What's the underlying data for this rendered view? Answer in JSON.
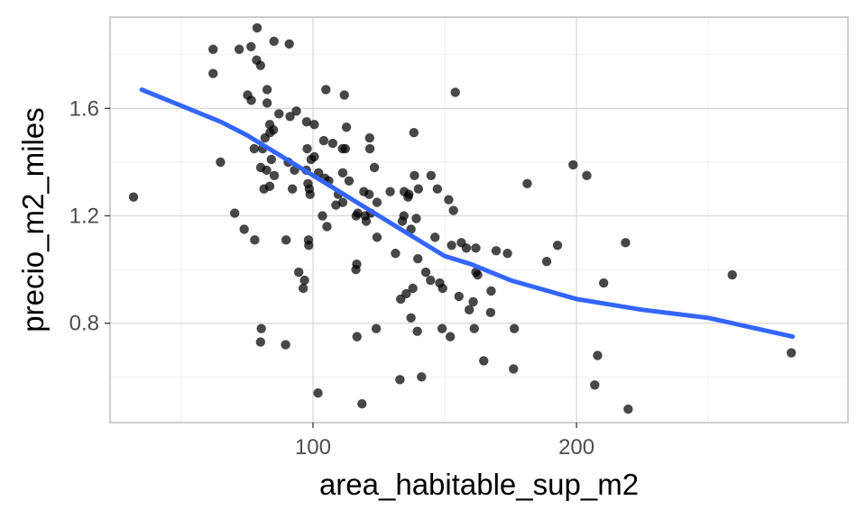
{
  "chart_data": {
    "type": "scatter",
    "title": "",
    "xlabel": "area_habitable_sup_m2",
    "ylabel": "precio_m2_miles",
    "xlim": [
      23,
      303
    ],
    "ylim": [
      0.43,
      1.94
    ],
    "x_ticks": [
      100,
      200
    ],
    "x_tick_labels": [
      "100",
      "200"
    ],
    "x_minor_ticks": [
      50,
      150,
      250
    ],
    "y_ticks": [
      0.8,
      1.2,
      1.6
    ],
    "y_tick_labels": [
      "0.8",
      "1.2",
      "1.6"
    ],
    "y_minor_ticks": [
      0.6,
      1.0,
      1.4,
      1.8
    ],
    "grid": true,
    "legend": "none",
    "colors": {
      "points": "#000000",
      "smooth": "#3366ff"
    },
    "points": [
      [
        78.8,
        1.9
      ],
      [
        85.2,
        1.85
      ],
      [
        91.0,
        1.84
      ],
      [
        62.1,
        1.82
      ],
      [
        72.0,
        1.82
      ],
      [
        76.5,
        1.83
      ],
      [
        78.6,
        1.78
      ],
      [
        80.1,
        1.76
      ],
      [
        62.1,
        1.73
      ],
      [
        75.2,
        1.65
      ],
      [
        76.6,
        1.63
      ],
      [
        82.6,
        1.67
      ],
      [
        104.9,
        1.67
      ],
      [
        111.9,
        1.65
      ],
      [
        154.0,
        1.66
      ],
      [
        82.6,
        1.62
      ],
      [
        87.1,
        1.58
      ],
      [
        91.3,
        1.57
      ],
      [
        93.7,
        1.59
      ],
      [
        83.6,
        1.54
      ],
      [
        97.6,
        1.55
      ],
      [
        100.5,
        1.54
      ],
      [
        83.7,
        1.51
      ],
      [
        85.0,
        1.52
      ],
      [
        112.7,
        1.53
      ],
      [
        138.3,
        1.51
      ],
      [
        81.8,
        1.49
      ],
      [
        104.1,
        1.48
      ],
      [
        107.5,
        1.47
      ],
      [
        111.2,
        1.45
      ],
      [
        112.3,
        1.45
      ],
      [
        121.5,
        1.49
      ],
      [
        121.6,
        1.45
      ],
      [
        77.7,
        1.45
      ],
      [
        80.9,
        1.45
      ],
      [
        97.8,
        1.45
      ],
      [
        99.3,
        1.41
      ],
      [
        100.5,
        1.42
      ],
      [
        84.2,
        1.41
      ],
      [
        90.6,
        1.4
      ],
      [
        64.9,
        1.4
      ],
      [
        198.7,
        1.39
      ],
      [
        203.9,
        1.35
      ],
      [
        80.2,
        1.38
      ],
      [
        82.4,
        1.37
      ],
      [
        85.3,
        1.35
      ],
      [
        93.0,
        1.37
      ],
      [
        97.5,
        1.37
      ],
      [
        102.1,
        1.36
      ],
      [
        104.5,
        1.34
      ],
      [
        106.0,
        1.33
      ],
      [
        111.3,
        1.36
      ],
      [
        113.7,
        1.33
      ],
      [
        123.3,
        1.38
      ],
      [
        138.5,
        1.35
      ],
      [
        144.8,
        1.35
      ],
      [
        181.3,
        1.32
      ],
      [
        81.4,
        1.3
      ],
      [
        83.6,
        1.31
      ],
      [
        92.2,
        1.3
      ],
      [
        98.1,
        1.32
      ],
      [
        98.6,
        1.3
      ],
      [
        98.9,
        1.28
      ],
      [
        109.6,
        1.28
      ],
      [
        119.3,
        1.29
      ],
      [
        121.3,
        1.28
      ],
      [
        129.3,
        1.29
      ],
      [
        134.6,
        1.29
      ],
      [
        136.4,
        1.28
      ],
      [
        136.1,
        1.27
      ],
      [
        140.0,
        1.3
      ],
      [
        147.2,
        1.3
      ],
      [
        151.5,
        1.26
      ],
      [
        108.7,
        1.24
      ],
      [
        111.3,
        1.25
      ],
      [
        124.3,
        1.25
      ],
      [
        117.0,
        1.21
      ],
      [
        119.8,
        1.2
      ],
      [
        103.6,
        1.2
      ],
      [
        116.4,
        1.2
      ],
      [
        120.2,
        1.18
      ],
      [
        121.9,
        1.21
      ],
      [
        133.9,
        1.18
      ],
      [
        134.5,
        1.2
      ],
      [
        139.2,
        1.19
      ],
      [
        153.3,
        1.22
      ],
      [
        70.3,
        1.21
      ],
      [
        73.9,
        1.15
      ],
      [
        77.9,
        1.11
      ],
      [
        89.8,
        1.11
      ],
      [
        98.3,
        1.11
      ],
      [
        98.4,
        1.09
      ],
      [
        105.3,
        1.16
      ],
      [
        124.3,
        1.12
      ],
      [
        131.3,
        1.06
      ],
      [
        137.2,
        1.15
      ],
      [
        146.3,
        1.12
      ],
      [
        152.6,
        1.09
      ],
      [
        156.3,
        1.1
      ],
      [
        158.2,
        1.08
      ],
      [
        161.8,
        1.08
      ],
      [
        169.5,
        1.07
      ],
      [
        173.8,
        1.06
      ],
      [
        192.8,
        1.09
      ],
      [
        218.6,
        1.1
      ],
      [
        116.6,
        1.02
      ],
      [
        116.3,
        1.0
      ],
      [
        139.8,
        1.04
      ],
      [
        142.8,
        0.99
      ],
      [
        144.6,
        0.96
      ],
      [
        148.1,
        0.95
      ],
      [
        161.8,
        0.99
      ],
      [
        162.5,
        0.98
      ],
      [
        188.7,
        1.03
      ],
      [
        94.6,
        0.99
      ],
      [
        96.8,
        0.96
      ],
      [
        96.3,
        0.93
      ],
      [
        137.9,
        0.93
      ],
      [
        135.4,
        0.91
      ],
      [
        133.3,
        0.89
      ],
      [
        149.2,
        0.93
      ],
      [
        155.4,
        0.9
      ],
      [
        160.8,
        0.88
      ],
      [
        159.3,
        0.85
      ],
      [
        167.6,
        0.92
      ],
      [
        167.4,
        0.84
      ],
      [
        210.3,
        0.95
      ],
      [
        137.2,
        0.82
      ],
      [
        139.6,
        0.77
      ],
      [
        149.0,
        0.78
      ],
      [
        152.1,
        0.75
      ],
      [
        161.2,
        0.78
      ],
      [
        176.4,
        0.78
      ],
      [
        116.7,
        0.75
      ],
      [
        124.0,
        0.78
      ],
      [
        80.4,
        0.78
      ],
      [
        80.1,
        0.73
      ],
      [
        89.6,
        0.72
      ],
      [
        164.8,
        0.66
      ],
      [
        176.1,
        0.63
      ],
      [
        208.0,
        0.68
      ],
      [
        206.9,
        0.57
      ],
      [
        219.6,
        0.48
      ],
      [
        259.1,
        0.98
      ],
      [
        281.5,
        0.69
      ],
      [
        133.0,
        0.59
      ],
      [
        141.2,
        0.6
      ],
      [
        101.9,
        0.54
      ],
      [
        118.6,
        0.5
      ],
      [
        31.9,
        1.27
      ]
    ],
    "smooth": {
      "x": [
        35,
        50,
        65,
        75,
        90,
        100,
        115,
        130,
        140,
        150,
        160,
        175,
        200,
        225,
        250,
        282
      ],
      "y": [
        1.67,
        1.61,
        1.55,
        1.5,
        1.41,
        1.35,
        1.26,
        1.17,
        1.11,
        1.05,
        1.02,
        0.96,
        0.89,
        0.85,
        0.82,
        0.75
      ]
    }
  }
}
